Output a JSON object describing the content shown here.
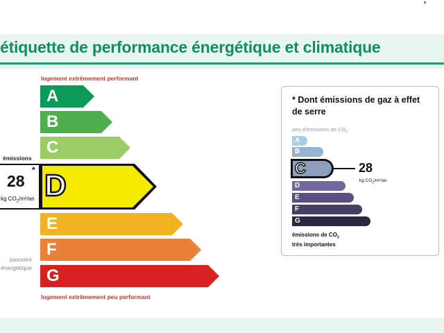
{
  "title": "étiquette de performance énergétique et climatique",
  "energy_scale": {
    "top_caption": "logement extrêmement performant",
    "bottom_caption": "logement extrêmement peu performant",
    "classes": [
      {
        "letter": "A",
        "color": "#0b9a5a"
      },
      {
        "letter": "B",
        "color": "#4fae4e"
      },
      {
        "letter": "C",
        "color": "#9ccc65"
      },
      {
        "letter": "D",
        "color": "#f4e900"
      },
      {
        "letter": "E",
        "color": "#f0b323"
      },
      {
        "letter": "F",
        "color": "#eb8039"
      },
      {
        "letter": "G",
        "color": "#d7221f"
      }
    ],
    "current_class": "D",
    "emissions": {
      "label": "émissions",
      "value": "28",
      "asterisk": "*",
      "unit_prefix": "kg CO",
      "unit_sub": "2",
      "unit_suffix": "/m²/an"
    },
    "passoire_label": "passoire énergétique"
  },
  "ghg_panel": {
    "title": "* Dont émissions de gaz à effet de serre",
    "low_caption_prefix": "peu d'émissions de CO",
    "low_caption_sub": "2",
    "classes": [
      {
        "letter": "A",
        "color": "#a9cde4"
      },
      {
        "letter": "B",
        "color": "#96b4d1"
      },
      {
        "letter": "C",
        "color": "#8d9fbb"
      },
      {
        "letter": "D",
        "color": "#74699c"
      },
      {
        "letter": "E",
        "color": "#5b4e82"
      },
      {
        "letter": "F",
        "color": "#473e67"
      },
      {
        "letter": "G",
        "color": "#2d2640"
      }
    ],
    "current_class": "C",
    "value": "28",
    "unit_prefix": "kg CO",
    "unit_sub": "2",
    "unit_suffix": "/m²/an",
    "high_caption_line1_prefix": "émissions de CO",
    "high_caption_sub": "2",
    "high_caption_line2": "très importantes"
  }
}
